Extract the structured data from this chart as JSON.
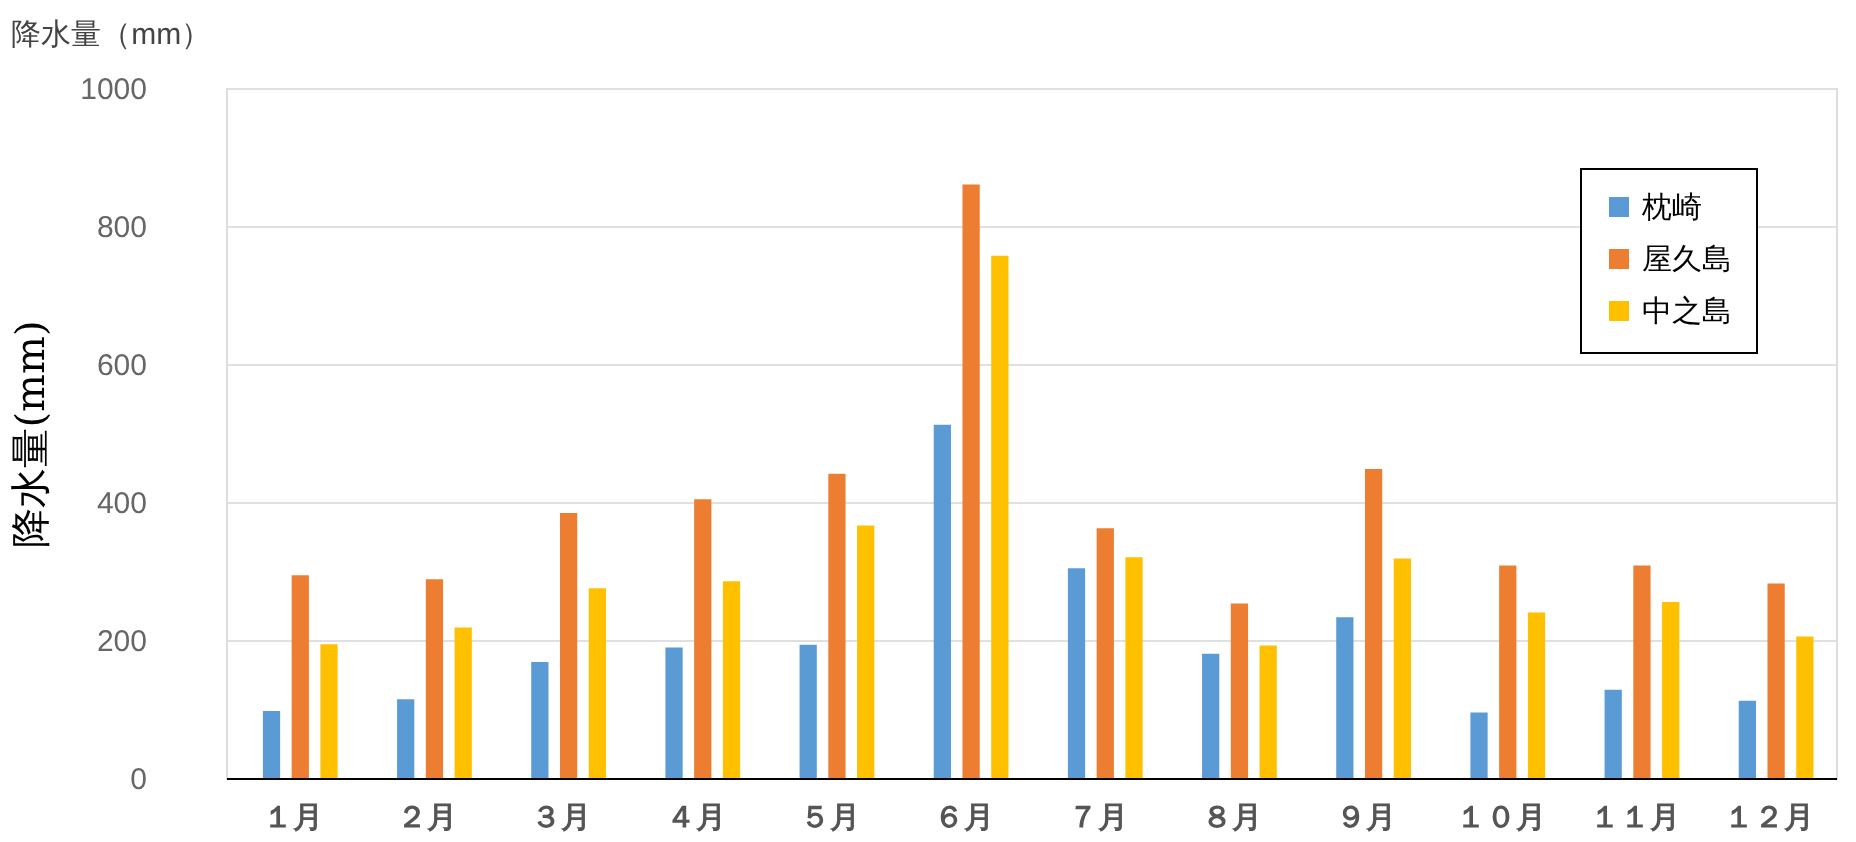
{
  "chart_data": {
    "type": "bar",
    "ylabel": "降水量(mm)",
    "annotations": [
      "降水量（mm）"
    ],
    "categories": [
      "１月",
      "２月",
      "３月",
      "４月",
      "５月",
      "６月",
      "７月",
      "８月",
      "９月",
      "１０月",
      "１１月",
      "１２月"
    ],
    "series": [
      {
        "name": "枕崎",
        "color": "#5b9bd5",
        "values": [
          97,
          114,
          168,
          189,
          193,
          512,
          304,
          180,
          233,
          95,
          128,
          112
        ]
      },
      {
        "name": "屋久島",
        "color": "#ed7d31",
        "values": [
          294,
          288,
          384,
          404,
          441,
          860,
          362,
          253,
          448,
          308,
          308,
          282
        ]
      },
      {
        "name": "中之島",
        "color": "#ffc000",
        "values": [
          194,
          218,
          275,
          285,
          366,
          757,
          320,
          192,
          318,
          240,
          255,
          205
        ]
      }
    ],
    "ylim": [
      0,
      1000
    ],
    "yticks": [
      0,
      200,
      400,
      600,
      800,
      1000
    ],
    "grid": "y",
    "legend": "top right"
  }
}
